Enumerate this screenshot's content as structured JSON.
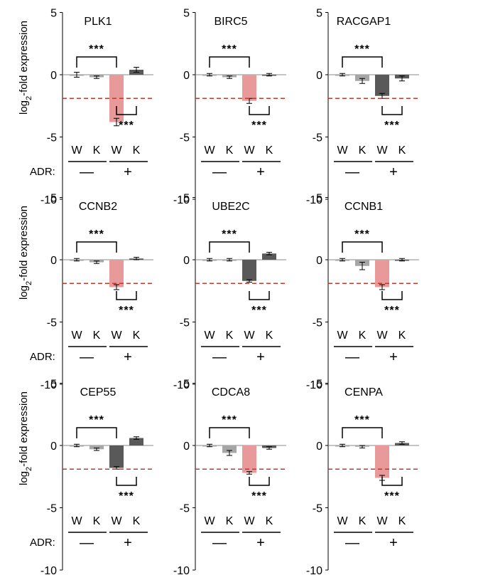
{
  "figure": {
    "ylabel_main": "log",
    "ylabel_sub": "2",
    "ylabel_rest": "-fold expression",
    "condition_label": "ADR:",
    "condition_minus": "—",
    "condition_plus": "+",
    "significance_label": "***"
  },
  "colors": {
    "dark_bar": "#595959",
    "light_bar": "#e8999a",
    "threshold": "#c0392b",
    "light_gray_bar": "#a6a6a6"
  },
  "chart_data": [
    {
      "type": "bar",
      "title": "PLK1",
      "categories": [
        "W",
        "K",
        "W",
        "K"
      ],
      "values": [
        0,
        -0.2,
        -3.8,
        0.4
      ],
      "errors": [
        0.2,
        0.1,
        0.3,
        0.2
      ],
      "highlight": [
        false,
        false,
        true,
        false
      ],
      "threshold": -1.9,
      "ylim": [
        -10,
        5
      ],
      "yticks": [
        5,
        0,
        -5,
        -10
      ],
      "ylabel": "log2-fold expression"
    },
    {
      "type": "bar",
      "title": "BIRC5",
      "categories": [
        "W",
        "K",
        "W",
        "K"
      ],
      "values": [
        0,
        -0.2,
        -2.1,
        0.0
      ],
      "errors": [
        0.1,
        0.1,
        0.2,
        0.1
      ],
      "highlight": [
        false,
        false,
        true,
        false
      ],
      "threshold": -1.9,
      "ylim": [
        -10,
        5
      ],
      "yticks": [
        5,
        0,
        -5,
        -10
      ],
      "ylabel": "log2-fold expression"
    },
    {
      "type": "bar",
      "title": "RACGAP1",
      "categories": [
        "W",
        "K",
        "W",
        "K"
      ],
      "values": [
        0,
        -0.5,
        -1.7,
        -0.3
      ],
      "errors": [
        0.1,
        0.2,
        0.2,
        0.2
      ],
      "highlight": [
        false,
        false,
        false,
        false
      ],
      "threshold": -1.9,
      "ylim": [
        -10,
        5
      ],
      "yticks": [
        5,
        0,
        -5,
        -10
      ],
      "ylabel": "log2-fold expression"
    },
    {
      "type": "bar",
      "title": "CCNB2",
      "categories": [
        "W",
        "K",
        "W",
        "K"
      ],
      "values": [
        0,
        -0.2,
        -2.2,
        0.1
      ],
      "errors": [
        0.1,
        0.1,
        0.2,
        0.1
      ],
      "highlight": [
        false,
        false,
        true,
        false
      ],
      "threshold": -1.9,
      "ylim": [
        -10,
        5
      ],
      "yticks": [
        5,
        0,
        -5,
        -10
      ],
      "ylabel": "log2-fold expression"
    },
    {
      "type": "bar",
      "title": "UBE2C",
      "categories": [
        "W",
        "K",
        "W",
        "K"
      ],
      "values": [
        0,
        0,
        -1.7,
        0.5
      ],
      "errors": [
        0.1,
        0.1,
        0.1,
        0.1
      ],
      "highlight": [
        false,
        false,
        false,
        false
      ],
      "threshold": -1.9,
      "ylim": [
        -10,
        5
      ],
      "yticks": [
        5,
        0,
        -5,
        -10
      ],
      "ylabel": "log2-fold expression"
    },
    {
      "type": "bar",
      "title": "CCNB1",
      "categories": [
        "W",
        "K",
        "W",
        "K"
      ],
      "values": [
        0,
        -0.5,
        -2.2,
        0.0
      ],
      "errors": [
        0.1,
        0.3,
        0.2,
        0.1
      ],
      "highlight": [
        false,
        false,
        true,
        false
      ],
      "threshold": -1.9,
      "ylim": [
        -10,
        5
      ],
      "yticks": [
        5,
        0,
        -5,
        -10
      ],
      "ylabel": "log2-fold expression"
    },
    {
      "type": "bar",
      "title": "CEP55",
      "categories": [
        "W",
        "K",
        "W",
        "K"
      ],
      "values": [
        0,
        -0.3,
        -1.8,
        0.6
      ],
      "errors": [
        0.1,
        0.1,
        0.1,
        0.1
      ],
      "highlight": [
        false,
        false,
        false,
        false
      ],
      "threshold": -1.9,
      "ylim": [
        -10,
        5
      ],
      "yticks": [
        5,
        0,
        -5,
        -10
      ],
      "ylabel": "log2-fold expression"
    },
    {
      "type": "bar",
      "title": "CDCA8",
      "categories": [
        "W",
        "K",
        "W",
        "K"
      ],
      "values": [
        0,
        -0.6,
        -2.2,
        -0.2
      ],
      "errors": [
        0.1,
        0.2,
        0.1,
        0.1
      ],
      "highlight": [
        false,
        false,
        true,
        false
      ],
      "threshold": -1.9,
      "ylim": [
        -10,
        5
      ],
      "yticks": [
        5,
        0,
        -5,
        -10
      ],
      "ylabel": "log2-fold expression"
    },
    {
      "type": "bar",
      "title": "CENPA",
      "categories": [
        "W",
        "K",
        "W",
        "K"
      ],
      "values": [
        0,
        -0.1,
        -2.6,
        0.2
      ],
      "errors": [
        0.1,
        0.1,
        0.2,
        0.1
      ],
      "highlight": [
        false,
        false,
        true,
        false
      ],
      "threshold": -1.9,
      "ylim": [
        -10,
        5
      ],
      "yticks": [
        5,
        0,
        -5,
        -10
      ],
      "ylabel": "log2-fold expression"
    }
  ]
}
